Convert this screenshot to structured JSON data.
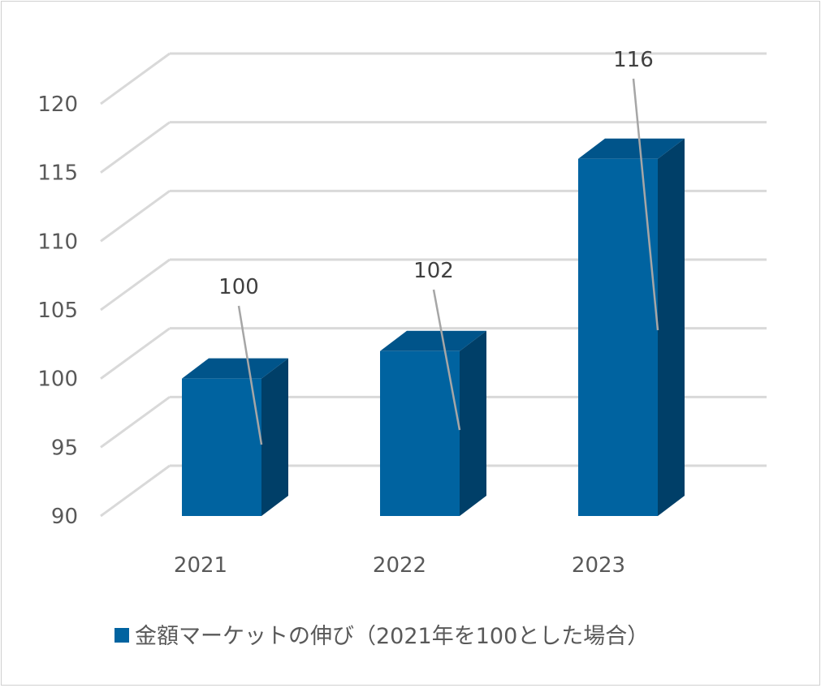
{
  "chart_data": {
    "type": "bar",
    "style": "3d-column",
    "categories": [
      "2021",
      "2022",
      "2023"
    ],
    "series": [
      {
        "name": "金額マーケットの伸び（2021年を100とした場合）",
        "values": [
          100,
          102,
          116
        ]
      }
    ],
    "title": "",
    "xlabel": "",
    "ylabel": "",
    "ylim": [
      90,
      120
    ],
    "yticks": [
      "90",
      "95",
      "100",
      "105",
      "110",
      "115",
      "120"
    ],
    "data_labels": [
      "100",
      "102",
      "116"
    ],
    "grid": true,
    "legend_position": "bottom",
    "colors": {
      "front": "#0063A0",
      "side": "#003F68",
      "top": "#00548A",
      "grid": "#D9D9D9",
      "leader": "#A6A6A6"
    }
  }
}
